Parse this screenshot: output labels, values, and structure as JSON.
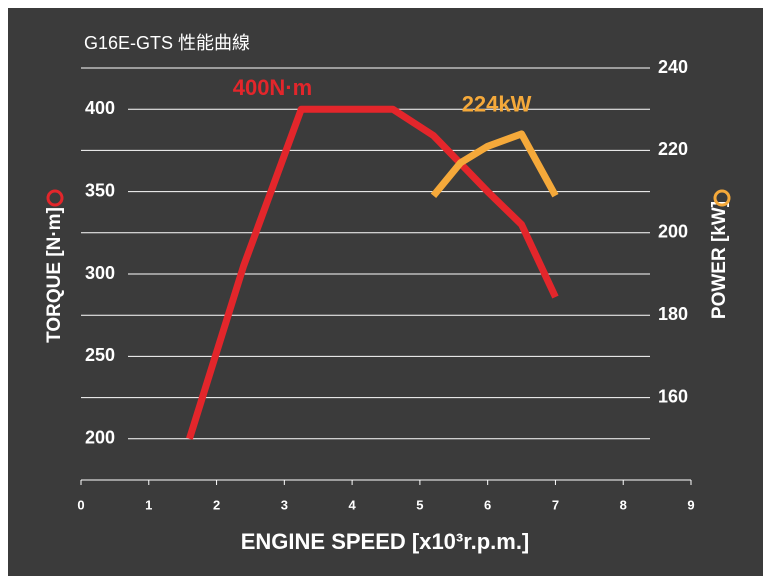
{
  "chart_data": {
    "type": "line",
    "title": "G16E-GTS 性能曲線",
    "x_label": "ENGINE SPEED [x10³r.p.m.]",
    "y_label": "TORQUE [N·m]",
    "y2_label": "POWER [kW]",
    "xlim": [
      0,
      9
    ],
    "xticks": [
      0,
      1,
      2,
      3,
      4,
      5,
      6,
      7,
      8,
      9
    ],
    "ylim": [
      175,
      425
    ],
    "yticks": [
      200,
      250,
      300,
      350,
      400
    ],
    "y2lim": [
      140,
      240
    ],
    "y2ticks": [
      160,
      180,
      200,
      220,
      240
    ],
    "grid": true,
    "series": [
      {
        "name": "400N·m",
        "color": "#e3262b",
        "x": [
          1.6,
          2.4,
          3.25,
          4.6,
          5.2,
          6,
          6.5,
          7
        ],
        "values": [
          200,
          305,
          400,
          400,
          384,
          350,
          330,
          286
        ]
      },
      {
        "name": "224kW",
        "color": "#f5a93a",
        "axis": "y2",
        "x": [
          5.2,
          5.6,
          6,
          6.5,
          7
        ],
        "values": [
          209,
          217,
          221,
          224,
          209
        ]
      }
    ]
  }
}
